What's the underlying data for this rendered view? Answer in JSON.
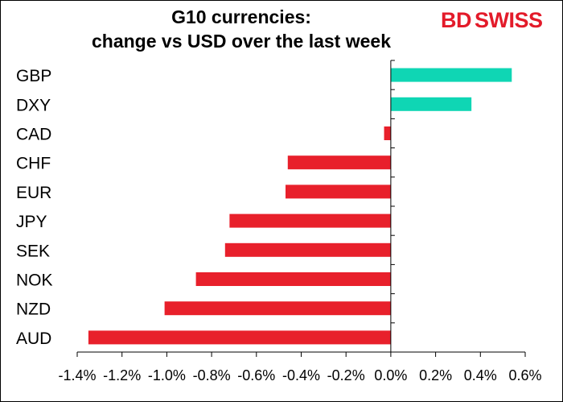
{
  "chart_data": {
    "type": "bar",
    "orientation": "horizontal",
    "title_lines": [
      "G10 currencies:",
      "change vs USD over the last week"
    ],
    "categories": [
      "GBP",
      "DXY",
      "CAD",
      "CHF",
      "EUR",
      "JPY",
      "SEK",
      "NOK",
      "NZD",
      "AUD"
    ],
    "values": [
      0.54,
      0.36,
      -0.03,
      -0.46,
      -0.47,
      -0.72,
      -0.74,
      -0.87,
      -1.01,
      -1.35
    ],
    "xlim": [
      -1.4,
      0.6
    ],
    "xticks": [
      "-1.4%",
      "-1.2%",
      "-1.0%",
      "-0.8%",
      "-0.6%",
      "-0.4%",
      "-0.2%",
      "0.0%",
      "0.2%",
      "0.4%",
      "0.6%"
    ],
    "tick_values": [
      -1.4,
      -1.2,
      -1.0,
      -0.8,
      -0.6,
      -0.4,
      -0.2,
      0.0,
      0.2,
      0.4,
      0.6
    ],
    "colors": {
      "positive": "#0fd6b4",
      "negative": "#e8202b"
    },
    "grid": false
  },
  "logo": {
    "part1": "BD",
    "part2": "SWISS"
  }
}
